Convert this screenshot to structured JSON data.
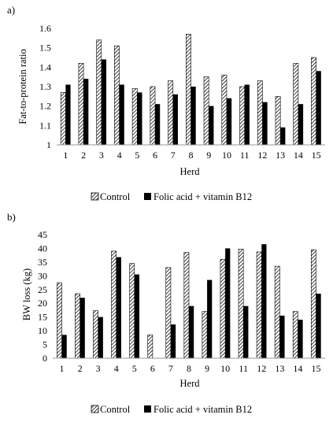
{
  "chart_data": [
    {
      "type": "bar",
      "panel_label": "a)",
      "title": "",
      "xlabel": "Herd",
      "ylabel": "Fat-to-protein ratio",
      "categories": [
        "1",
        "2",
        "3",
        "4",
        "5",
        "6",
        "7",
        "8",
        "9",
        "10",
        "11",
        "12",
        "13",
        "14",
        "15"
      ],
      "ylim": [
        1,
        1.6
      ],
      "yticks": [
        "1",
        "1.1",
        "1.2",
        "1.3",
        "1.4",
        "1.5",
        "1.6"
      ],
      "grid": false,
      "legend_position": "bottom",
      "series": [
        {
          "name": "Control",
          "pattern": "diagonal-hatch",
          "values": [
            1.27,
            1.42,
            1.54,
            1.51,
            1.29,
            1.3,
            1.33,
            1.57,
            1.35,
            1.36,
            1.3,
            1.33,
            1.25,
            1.42,
            1.45
          ]
        },
        {
          "name": "Folic acid + vitamin B12",
          "pattern": "solid-black",
          "values": [
            1.31,
            1.34,
            1.44,
            1.31,
            1.27,
            1.21,
            1.26,
            1.3,
            1.2,
            1.24,
            1.31,
            1.22,
            1.09,
            1.21,
            1.38
          ]
        }
      ]
    },
    {
      "type": "bar",
      "panel_label": "b)",
      "title": "",
      "xlabel": "Herd",
      "ylabel": "BW loss (kg)",
      "categories": [
        "1",
        "2",
        "3",
        "4",
        "5",
        "6",
        "7",
        "8",
        "9",
        "10",
        "11",
        "12",
        "13",
        "14",
        "15"
      ],
      "ylim": [
        0,
        45
      ],
      "yticks": [
        "0",
        "5",
        "10",
        "15",
        "20",
        "25",
        "30",
        "35",
        "40",
        "45"
      ],
      "grid": false,
      "legend_position": "bottom",
      "series": [
        {
          "name": "Control",
          "pattern": "diagonal-hatch",
          "values": [
            27.5,
            23.5,
            17.3,
            39.0,
            34.5,
            8.5,
            33.0,
            38.5,
            17.0,
            36.0,
            39.7,
            38.7,
            33.5,
            17.0,
            39.5
          ]
        },
        {
          "name": "Folic acid + vitamin B12",
          "pattern": "solid-black",
          "values": [
            8.5,
            22.0,
            15.0,
            36.8,
            30.5,
            0,
            12.3,
            19.0,
            28.5,
            40.0,
            19.0,
            41.5,
            15.5,
            14.0,
            23.5
          ]
        }
      ]
    }
  ]
}
